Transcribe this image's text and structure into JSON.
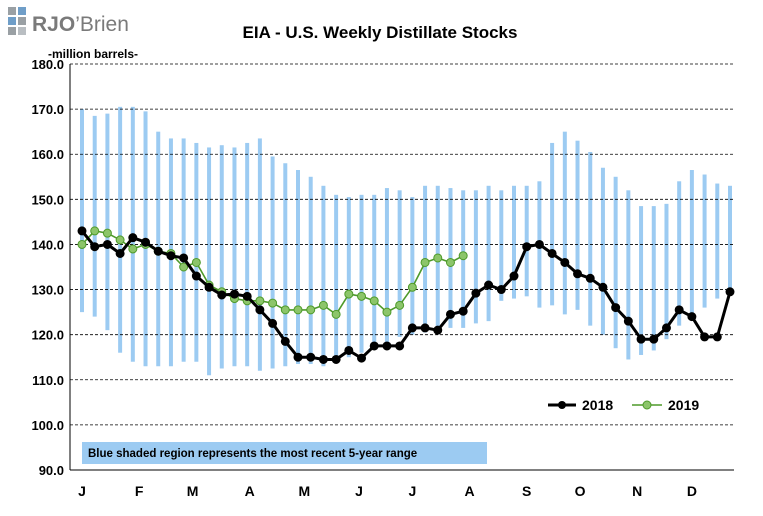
{
  "logo": {
    "text_bold": "RJO",
    "text_light": "Brien",
    "apostrophe": "’"
  },
  "colors": {
    "range": "#9ccbf2",
    "line2018": "#000000",
    "line2019": "#4e9a2a",
    "marker2019": "#8cc56a",
    "note_bg": "#9ccbf2"
  },
  "chart_data": {
    "type": "line",
    "title": "EIA - U.S. Weekly Distillate Stocks",
    "unit_label": "-million  barrels-",
    "ylim": [
      90,
      180
    ],
    "yticks": [
      "90.0",
      "100.0",
      "110.0",
      "120.0",
      "130.0",
      "140.0",
      "150.0",
      "160.0",
      "170.0",
      "180.0"
    ],
    "ytick_values": [
      90,
      100,
      110,
      120,
      130,
      140,
      150,
      160,
      170,
      180
    ],
    "x_weeks": 52,
    "month_labels": [
      "J",
      "F",
      "M",
      "A",
      "M",
      "J",
      "J",
      "A",
      "S",
      "O",
      "N",
      "D"
    ],
    "month_label_weeks": [
      1,
      5.5,
      9.7,
      14.2,
      18.5,
      22.8,
      27,
      31.5,
      36,
      40.2,
      44.7,
      49
    ],
    "grid": "horizontal dashed",
    "legend_position": "bottom-right",
    "range_5yr": {
      "weeks": [
        1,
        2,
        3,
        4,
        5,
        6,
        7,
        8,
        9,
        10,
        11,
        12,
        13,
        14,
        15,
        16,
        17,
        18,
        19,
        20,
        21,
        22,
        23,
        24,
        25,
        26,
        27,
        28,
        29,
        30,
        31,
        32,
        33,
        34,
        35,
        36,
        37,
        38,
        39,
        40,
        41,
        42,
        43,
        44,
        45,
        46,
        47,
        48,
        49,
        50,
        51,
        52
      ],
      "low": [
        125,
        124,
        121,
        116,
        114,
        113,
        113,
        113,
        114,
        114,
        111,
        112.5,
        113,
        113,
        112,
        112.5,
        113,
        113.5,
        113.5,
        113,
        114.5,
        115,
        116,
        117.5,
        118,
        119.5,
        120,
        120.5,
        121,
        121.5,
        121.5,
        122.5,
        123,
        127.5,
        128,
        128.5,
        126,
        126.5,
        124.5,
        125.5,
        122,
        120,
        117,
        114.5,
        115.5,
        116.5,
        119,
        122,
        124,
        126,
        128,
        129
      ],
      "high": [
        170,
        168.5,
        169,
        170.5,
        170.5,
        169.5,
        165,
        163.5,
        163.5,
        162.5,
        161.5,
        162,
        161.5,
        162.5,
        163.5,
        159.5,
        158,
        156.5,
        155,
        153,
        151,
        150.5,
        151,
        151,
        152.5,
        152,
        150.5,
        153,
        153,
        152.5,
        152,
        152,
        153,
        152,
        153,
        153,
        154,
        162.5,
        165,
        163,
        160.5,
        157,
        155,
        152,
        148.5,
        148.5,
        149,
        154,
        156.5,
        155.5,
        153.5,
        153
      ]
    },
    "series": [
      {
        "name": "2018",
        "weeks": [
          1,
          2,
          3,
          4,
          5,
          6,
          7,
          8,
          9,
          10,
          11,
          12,
          13,
          14,
          15,
          16,
          17,
          18,
          19,
          20,
          21,
          22,
          23,
          24,
          25,
          26,
          27,
          28,
          29,
          30,
          31,
          32,
          33,
          34,
          35,
          36,
          37,
          38,
          39,
          40,
          41,
          42,
          43,
          44,
          45,
          46,
          47,
          48,
          49,
          50,
          51,
          52
        ],
        "values": [
          143,
          139.5,
          140,
          138,
          141.5,
          140.5,
          138.5,
          137.5,
          137,
          133,
          130.5,
          128.8,
          129,
          128.5,
          125.5,
          122.5,
          118.5,
          115,
          115,
          114.5,
          114.5,
          116.5,
          114.8,
          117.5,
          117.5,
          117.5,
          121.5,
          121.5,
          121,
          124.5,
          125.2,
          129.2,
          131,
          130,
          133,
          139.5,
          140,
          138,
          136,
          133.5,
          132.5,
          130.5,
          126,
          123,
          119,
          119,
          121.5,
          125.5,
          124,
          119.5,
          119.5,
          129.5
        ]
      },
      {
        "name": "2019",
        "weeks": [
          1,
          2,
          3,
          4,
          5,
          6,
          7,
          8,
          9,
          10,
          11,
          12,
          13,
          14,
          15,
          16,
          17,
          18,
          19,
          20,
          21,
          22,
          23,
          24,
          25,
          26,
          27,
          28,
          29,
          30,
          31
        ],
        "values": [
          140,
          143,
          142.5,
          141,
          139,
          140,
          138.5,
          138,
          135,
          136,
          131,
          129.5,
          128,
          127.5,
          127.5,
          127,
          125.5,
          125.5,
          125.5,
          126.5,
          124.5,
          129,
          128.5,
          127.5,
          125,
          126.5,
          130.5,
          136,
          137,
          136,
          137.5
        ]
      }
    ],
    "legend": [
      "2018",
      "2019"
    ],
    "note": "Blue shaded region represents the most recent 5-year range"
  }
}
